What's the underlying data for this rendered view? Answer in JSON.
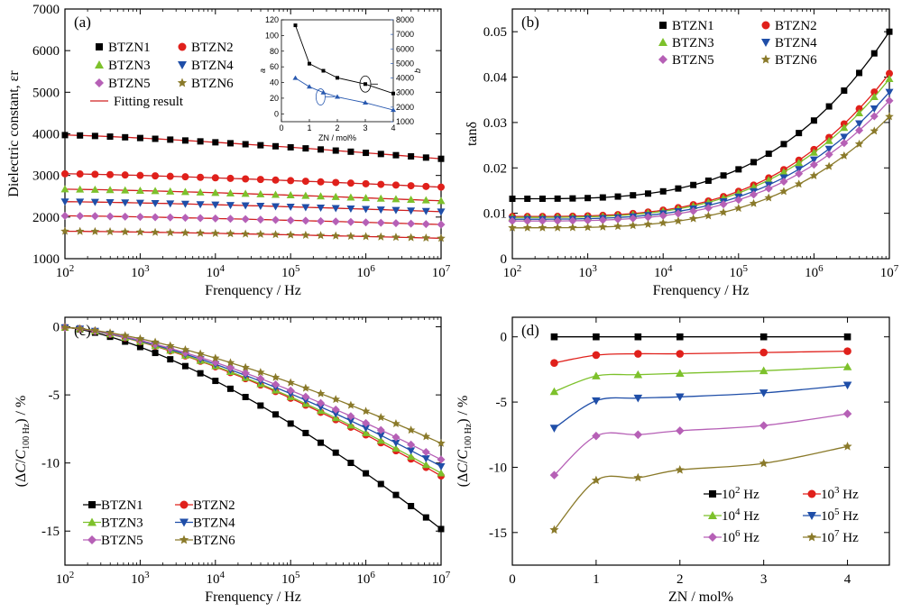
{
  "figure": {
    "panels": [
      "(a)",
      "(b)",
      "(c)",
      "(d)"
    ]
  },
  "colors": {
    "BTZN1": "#000000",
    "BTZN2": "#e0201b",
    "BTZN3": "#7dc12b",
    "BTZN4": "#1f4ea8",
    "BTZN5": "#b660b6",
    "BTZN6": "#8a7a2a",
    "fit": "#d02020",
    "inset_a": "#000000",
    "inset_b": "#2a5ab0"
  },
  "chart_data": [
    {
      "type": "line",
      "panel": "(a)",
      "xlabel": "Frenquency / Hz",
      "ylabel": "Dielectric constant, εr",
      "xscale": "log",
      "xlim": [
        100,
        10000000
      ],
      "ylim": [
        1000,
        7000
      ],
      "x_ticks": [
        100,
        1000,
        10000,
        100000,
        1000000,
        10000000
      ],
      "x_tick_labels": [
        [
          "10",
          "2"
        ],
        [
          "10",
          "3"
        ],
        [
          "10",
          "4"
        ],
        [
          "10",
          "5"
        ],
        [
          "10",
          "6"
        ],
        [
          "10",
          "7"
        ]
      ],
      "y_ticks": [
        1000,
        2000,
        3000,
        4000,
        5000,
        6000,
        7000
      ],
      "y_tick_labels": [
        "1000",
        "2000",
        "3000",
        "4000",
        "5000",
        "6000",
        "7000"
      ],
      "legend": [
        "BTZN1",
        "BTZN2",
        "BTZN3",
        "BTZN4",
        "BTZN5",
        "BTZN6",
        "Fitting result"
      ],
      "legend_position": "upper-left",
      "series": [
        {
          "name": "BTZN1",
          "marker": "square",
          "start": 3970,
          "end": 3400
        },
        {
          "name": "BTZN2",
          "marker": "circle",
          "start": 3040,
          "end": 2720
        },
        {
          "name": "BTZN3",
          "marker": "triangle-up",
          "start": 2670,
          "end": 2390
        },
        {
          "name": "BTZN4",
          "marker": "triangle-down",
          "start": 2370,
          "end": 2130
        },
        {
          "name": "BTZN5",
          "marker": "diamond",
          "start": 2030,
          "end": 1820
        },
        {
          "name": "BTZN6",
          "marker": "star",
          "start": 1660,
          "end": 1490
        }
      ],
      "inset": {
        "xlabel": "ZN / mol%",
        "ylabel_left": "a",
        "ylabel_right": "b",
        "xlim": [
          0,
          4
        ],
        "ylim_left": [
          -10,
          120
        ],
        "ylim_right": [
          1000,
          8000
        ],
        "x_tick_labels": [
          "0",
          "1",
          "2",
          "3",
          "4"
        ],
        "y_left_tick_labels": [
          "0",
          "20",
          "40",
          "60",
          "80",
          "100",
          "120"
        ],
        "y_right_tick_labels": [
          "1000",
          "2000",
          "3000",
          "4000",
          "5000",
          "6000",
          "7000",
          "8000"
        ],
        "x": [
          0.5,
          1,
          1.5,
          2,
          3,
          4
        ],
        "a": [
          113,
          64,
          55,
          46,
          38,
          26
        ],
        "b": [
          4000,
          3400,
          3000,
          2700,
          2300,
          1800
        ]
      }
    },
    {
      "type": "line",
      "panel": "(b)",
      "xlabel": "Frenquency / Hz",
      "ylabel": "tanδ",
      "xscale": "log",
      "xlim": [
        100,
        10000000
      ],
      "ylim": [
        0,
        0.055
      ],
      "x_ticks": [
        100,
        1000,
        10000,
        100000,
        1000000,
        10000000
      ],
      "x_tick_labels": [
        [
          "10",
          "2"
        ],
        [
          "10",
          "3"
        ],
        [
          "10",
          "4"
        ],
        [
          "10",
          "5"
        ],
        [
          "10",
          "6"
        ],
        [
          "10",
          "7"
        ]
      ],
      "y_ticks": [
        0,
        0.01,
        0.02,
        0.03,
        0.04,
        0.05
      ],
      "y_tick_labels": [
        "0",
        "0.01",
        "0.02",
        "0.03",
        "0.04",
        "0.05"
      ],
      "legend": [
        "BTZN1",
        "BTZN2",
        "BTZN3",
        "BTZN4",
        "BTZN5",
        "BTZN6"
      ],
      "legend_position": "upper-left",
      "series": [
        {
          "name": "BTZN1",
          "marker": "square",
          "base": 0.0132,
          "rise": 0.0368
        },
        {
          "name": "BTZN2",
          "marker": "circle",
          "base": 0.0093,
          "rise": 0.0315
        },
        {
          "name": "BTZN3",
          "marker": "triangle-up",
          "base": 0.0091,
          "rise": 0.0305
        },
        {
          "name": "BTZN4",
          "marker": "triangle-down",
          "base": 0.0087,
          "rise": 0.028
        },
        {
          "name": "BTZN5",
          "marker": "diamond",
          "base": 0.0083,
          "rise": 0.0265
        },
        {
          "name": "BTZN6",
          "marker": "star",
          "base": 0.0068,
          "rise": 0.0245
        }
      ]
    },
    {
      "type": "line",
      "panel": "(c)",
      "xlabel": "Frenquency / Hz",
      "ylabel": "(ΔC/C100 Hz) / %",
      "ylabel_parts": [
        "(Δ",
        "C",
        "/",
        "C",
        "100 Hz",
        ") / %"
      ],
      "xscale": "log",
      "xlim": [
        100,
        10000000
      ],
      "ylim": [
        -17.5,
        0.7
      ],
      "x_ticks": [
        100,
        1000,
        10000,
        100000,
        1000000,
        10000000
      ],
      "x_tick_labels": [
        [
          "10",
          "2"
        ],
        [
          "10",
          "3"
        ],
        [
          "10",
          "4"
        ],
        [
          "10",
          "5"
        ],
        [
          "10",
          "6"
        ],
        [
          "10",
          "7"
        ]
      ],
      "y_ticks": [
        0,
        -5,
        -10,
        -15
      ],
      "y_tick_labels": [
        "0",
        "-5",
        "-10",
        "-15"
      ],
      "legend": [
        "BTZN1",
        "BTZN2",
        "BTZN3",
        "BTZN4",
        "BTZN5",
        "BTZN6"
      ],
      "legend_position": "lower-left",
      "series": [
        {
          "name": "BTZN1",
          "marker": "square",
          "end": -14.8
        },
        {
          "name": "BTZN2",
          "marker": "circle",
          "end": -10.9
        },
        {
          "name": "BTZN3",
          "marker": "triangle-up",
          "end": -10.7
        },
        {
          "name": "BTZN4",
          "marker": "triangle-down",
          "end": -10.2
        },
        {
          "name": "BTZN5",
          "marker": "diamond",
          "end": -9.7
        },
        {
          "name": "BTZN6",
          "marker": "star",
          "end": -8.5
        }
      ]
    },
    {
      "type": "line",
      "panel": "(d)",
      "xlabel": "ZN / mol%",
      "ylabel": "(ΔC/C100 Hz) / %",
      "ylabel_parts": [
        "(Δ",
        "C",
        "/",
        "C",
        "100 Hz",
        ") / %"
      ],
      "xlim": [
        0,
        4.5
      ],
      "ylim": [
        -17.5,
        1.5
      ],
      "x_ticks": [
        0,
        1,
        2,
        3,
        4
      ],
      "x_tick_labels": [
        "0",
        "1",
        "2",
        "3",
        "4"
      ],
      "y_ticks": [
        0,
        -5,
        -10,
        -15
      ],
      "y_tick_labels": [
        "0",
        "-5",
        "-10",
        "-15"
      ],
      "x": [
        0.5,
        1,
        1.5,
        2,
        3,
        4
      ],
      "legend": [
        [
          "10",
          "2",
          " Hz"
        ],
        [
          "10",
          "3",
          " Hz"
        ],
        [
          "10",
          "4",
          " Hz"
        ],
        [
          "10",
          "5",
          " Hz"
        ],
        [
          "10",
          "6",
          " Hz"
        ],
        [
          "10",
          "7",
          " Hz"
        ]
      ],
      "legend_position": "lower-right",
      "series": [
        {
          "name": "10^2 Hz",
          "marker": "square",
          "color_key": "BTZN1",
          "values": [
            0,
            0,
            0,
            0,
            0,
            0
          ]
        },
        {
          "name": "10^3 Hz",
          "marker": "circle",
          "color_key": "BTZN2",
          "values": [
            -2.0,
            -1.4,
            -1.3,
            -1.3,
            -1.2,
            -1.1
          ]
        },
        {
          "name": "10^4 Hz",
          "marker": "triangle-up",
          "color_key": "BTZN3",
          "values": [
            -4.2,
            -3.0,
            -2.9,
            -2.8,
            -2.6,
            -2.3
          ]
        },
        {
          "name": "10^5 Hz",
          "marker": "triangle-down",
          "color_key": "BTZN4",
          "values": [
            -7.0,
            -4.9,
            -4.7,
            -4.6,
            -4.3,
            -3.7
          ]
        },
        {
          "name": "10^6 Hz",
          "marker": "diamond",
          "color_key": "BTZN5",
          "values": [
            -10.6,
            -7.6,
            -7.5,
            -7.2,
            -6.8,
            -5.9
          ]
        },
        {
          "name": "10^7 Hz",
          "marker": "star",
          "color_key": "BTZN6",
          "values": [
            -14.8,
            -11.0,
            -10.8,
            -10.2,
            -9.7,
            -8.4
          ]
        }
      ]
    }
  ]
}
